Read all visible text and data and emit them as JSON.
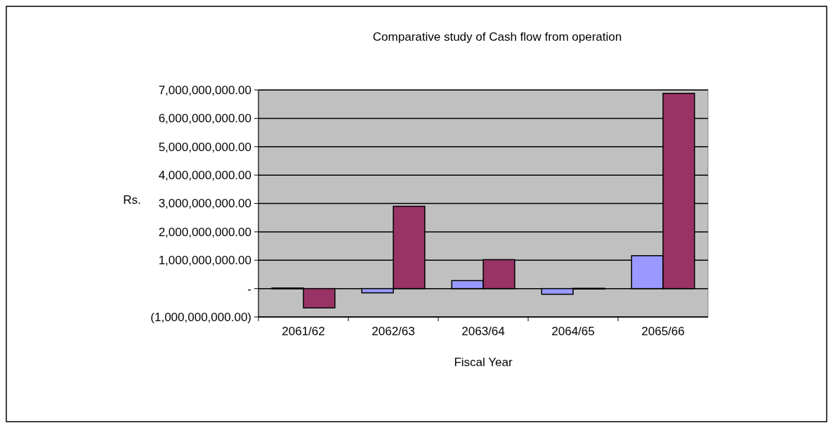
{
  "chart_data": {
    "type": "bar",
    "title": "Comparative study of Cash flow  from operation",
    "xlabel": "Fiscal Year",
    "ylabel": "Rs.",
    "categories": [
      "2061/62",
      "2062/63",
      "2063/64",
      "2064/65",
      "2065/66"
    ],
    "series": [
      {
        "color": "#9999ff",
        "values": [
          20000000,
          -150000000,
          280000000,
          -200000000,
          1160000000
        ]
      },
      {
        "color": "#993366",
        "values": [
          -680000000,
          2900000000,
          1020000000,
          10000000,
          6880000000
        ]
      }
    ],
    "ylim": [
      -1000000000,
      7000000000
    ],
    "yticks": [
      {
        "value": -1000000000,
        "label": "(1,000,000,000.00)"
      },
      {
        "value": 0,
        "label": "-"
      },
      {
        "value": 1000000000,
        "label": "1,000,000,000.00"
      },
      {
        "value": 2000000000,
        "label": "2,000,000,000.00"
      },
      {
        "value": 3000000000,
        "label": "3,000,000,000.00"
      },
      {
        "value": 4000000000,
        "label": "4,000,000,000.00"
      },
      {
        "value": 5000000000,
        "label": "5,000,000,000.00"
      },
      {
        "value": 6000000000,
        "label": "6,000,000,000.00"
      },
      {
        "value": 7000000000,
        "label": "7,000,000,000.00"
      }
    ],
    "grid": "y",
    "legend": false
  }
}
